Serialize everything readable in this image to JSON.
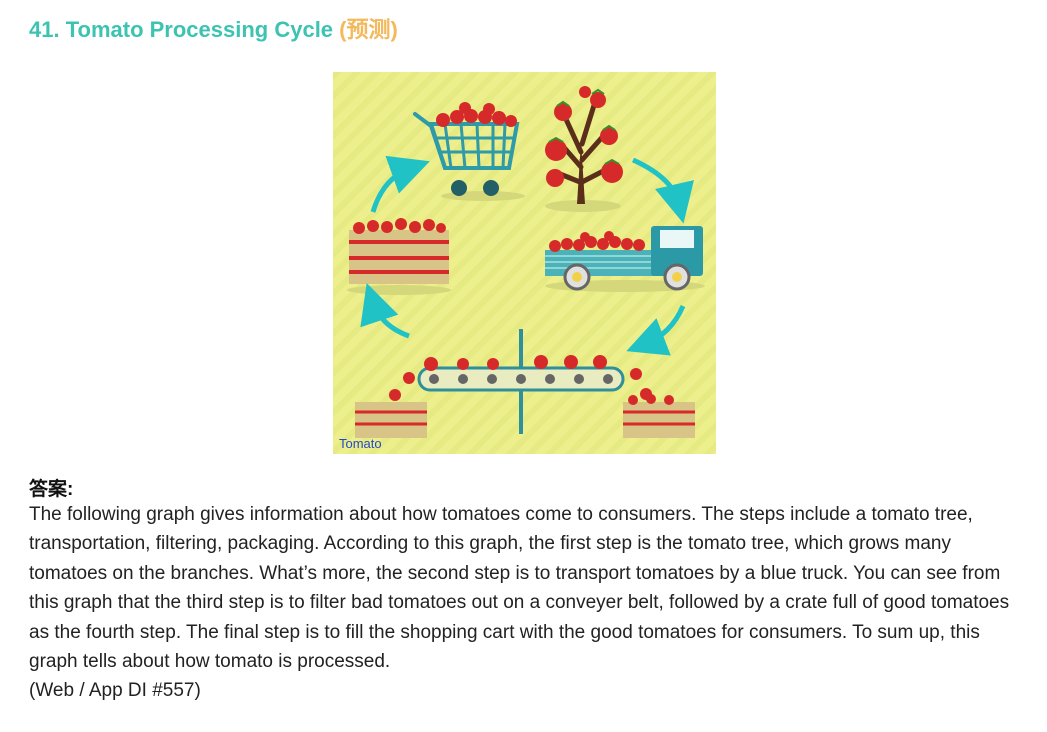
{
  "heading": {
    "text": "41. Tomato Processing Cycle",
    "tag": "(预测)"
  },
  "figure": {
    "caption": "Tomato",
    "colors": {
      "background": "#ecef8c",
      "tomato": "#d62a2a",
      "arrow": "#21c2c6",
      "truck": "#2c9aa6",
      "crate": "#d8c487",
      "cart": "#2f9aa8",
      "belt": "#2f8f9a"
    }
  },
  "answer": {
    "label": "答案:",
    "body": "The following graph gives information about how tomatoes come to consumers. The steps include a tomato tree, transportation, filtering, packaging. According to this graph, the first step is the tomato tree, which grows many tomatoes on the branches. What’s more, the second step is to transport tomatoes by a blue truck. You can see from this graph that the third step is to filter bad tomatoes out on a conveyer belt, followed by a crate full of good tomatoes as the fourth step. The final step is to fill the shopping cart with the good tomatoes for consumers. To sum up, this graph tells about how tomato is processed.",
    "source": "(Web / App DI #557)"
  }
}
